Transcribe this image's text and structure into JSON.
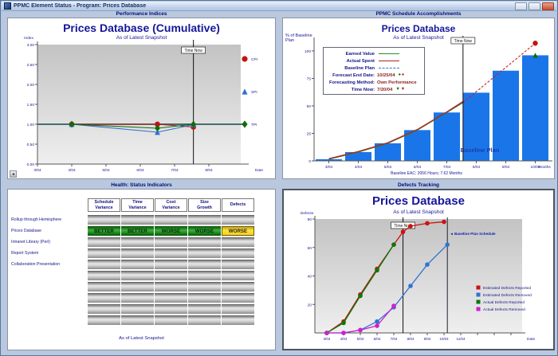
{
  "window": {
    "title": "PPMC Element Status - Program: Prices Database"
  },
  "panel_headers": {
    "performance": "Performance Indices",
    "schedule": "PPMC Schedule Accomplishments",
    "health": "Health: Status Indicators",
    "defects": "Defects Tracking"
  },
  "performance": {
    "title": "Prices Database (Cumulative)",
    "subtitle": "As of Latest Snapshot"
  },
  "schedule": {
    "title": "Prices Database",
    "subtitle": "As of Latest Snapshot",
    "ylabel": "% of Baseline Plan",
    "legend": {
      "rows": [
        {
          "label": "Earned Value",
          "swatch": "line-green"
        },
        {
          "label": "Actual Spent",
          "swatch": "line-red"
        },
        {
          "label": "Baseline Plan",
          "swatch": "line-blue-dash"
        },
        {
          "label": "Forecast End Date:",
          "value": "10/25/04",
          "markers": "dots"
        },
        {
          "label": "Forecasting Method:",
          "value": "Own Performance"
        },
        {
          "label": "Time Now:",
          "value": "7/20/04",
          "markers": "triangles"
        }
      ]
    }
  },
  "defects_panel": {
    "title": "Prices Database",
    "subtitle": "As of Latest Snapshot"
  },
  "health": {
    "columns": [
      [
        "Schedule",
        "Variance"
      ],
      [
        "Time",
        "Variance"
      ],
      [
        "Cost",
        "Variance"
      ],
      [
        "Size",
        "Growth"
      ],
      [
        "Defects"
      ]
    ],
    "row_labels": [
      "Rollup through Hemisphere",
      "Prices Database",
      "Intranet Library (Perl)",
      "Report System",
      "Collaboration Presentation"
    ],
    "n_rows": 10,
    "highlight_row": 1,
    "highlight_values": [
      "BETTER",
      "BETTER",
      "WORSE",
      "WORSE",
      "WORSE"
    ],
    "highlight_colors": [
      "green",
      "green",
      "green",
      "green",
      "yellow"
    ],
    "caption": "As of Latest Snapshot"
  },
  "colors": {
    "title_navy": "#16169a",
    "bar_blue": "#1a75e8",
    "health_better_green": "#2f9e2f",
    "health_worse_yellow": "#ffd900",
    "window_bg": "#b9c8de"
  },
  "chart_data": [
    {
      "id": "performance_indices",
      "type": "line",
      "title": "Prices Database (Cumulative)",
      "subtitle": "As of Latest Snapshot",
      "ylabel": "Index",
      "xlabel": "Date",
      "x_tick_labels": [
        "3/04",
        "4/04",
        "5/04",
        "6/04",
        "7/04",
        "8/04"
      ],
      "y_ticks": [
        0,
        0.5,
        1,
        1.5,
        2,
        2.5,
        3
      ],
      "ylim": [
        0,
        3
      ],
      "reference_line_y": 1.0,
      "time_now": {
        "label": "Time Now",
        "x_months_from_start": 4.55,
        "date": "7/20/04"
      },
      "series": [
        {
          "name": "CPI",
          "marker": "circle",
          "color": "#c11414",
          "x": [
            1,
            3.5,
            4.55
          ],
          "y": [
            1.0,
            1.0,
            0.93
          ]
        },
        {
          "name": "SPI",
          "marker": "triangle",
          "color": "#2e6fd0",
          "x": [
            1,
            3.5,
            4.55
          ],
          "y": [
            1.0,
            0.8,
            0.99
          ]
        },
        {
          "name": "TPI",
          "marker": "diamond",
          "color": "#0c6e0c",
          "x": [
            1,
            3.5,
            4.55
          ],
          "y": [
            1.0,
            0.9,
            1.0
          ]
        }
      ]
    },
    {
      "id": "schedule_accomplishments",
      "type": "bar",
      "title": "Prices Database",
      "subtitle": "As of Latest Snapshot",
      "categories": [
        "3/04",
        "4/04",
        "5/04",
        "6/04",
        "7/04",
        "8/04",
        "9/04",
        "10/04"
      ],
      "bar_values_pct_of_baseline": [
        1.5,
        8,
        16,
        28,
        44,
        62,
        82,
        96
      ],
      "bar_series_name": "Baseline Plan",
      "bar_color": "#1a75e8",
      "y_ticks": [
        0,
        25,
        50,
        75,
        100
      ],
      "ylim": [
        0,
        105
      ],
      "ylabel": "% of Baseline Plan",
      "xlabel": "Months",
      "time_now": {
        "label": "Time Now",
        "x_months_from_start": 4.55,
        "date": "7/20/04"
      },
      "overlay_lines": [
        {
          "name": "Earned Value",
          "color": "#2e8b2e",
          "x": [
            0,
            1,
            2,
            3,
            4,
            4.55
          ],
          "y": [
            1.5,
            8,
            16,
            28,
            44,
            53
          ]
        },
        {
          "name": "Actual Spent",
          "color": "#b22222",
          "x": [
            0,
            1,
            2,
            3,
            4,
            4.55
          ],
          "y": [
            2,
            8.5,
            16.5,
            28.5,
            44.5,
            54
          ]
        }
      ],
      "forecast_line": {
        "color": "#d02020",
        "dashed": true,
        "x": [
          4.55,
          7.0
        ],
        "y": [
          53,
          107
        ]
      },
      "forecast_markers": [
        {
          "shape": "circle",
          "color": "#c11414",
          "x": 7.0,
          "y": 107
        },
        {
          "shape": "triangle",
          "color": "#0c6e0c",
          "x": 7.0,
          "y": 96
        }
      ],
      "bar_area_label": "Baseline Plan",
      "caption": "Baseline EAC: 2056 Hours; 7.62 Months"
    },
    {
      "id": "defects_tracking",
      "type": "line",
      "title": "Prices Database",
      "subtitle": "As of Latest Snapshot",
      "x_tick_labels": [
        "3/04",
        "4/04",
        "5/04",
        "6/04",
        "7/04",
        "8/04",
        "9/04",
        "10/04",
        "11/04"
      ],
      "n_extra_unlabeled_ticks": 3,
      "xlabel": "Date",
      "ylabel": "Defects",
      "y_ticks": [
        20,
        40,
        60,
        80
      ],
      "ylim": [
        0,
        80
      ],
      "time_now": {
        "label": "Time Now",
        "x_months_from_start": 4.55,
        "date": "7/20/04"
      },
      "baseline_plan_schedule_x": 7.2,
      "baseline_plan_schedule_label": "Baseline Plan Schedule",
      "series": [
        {
          "name": "Estimated Defects Reported",
          "color": "#cc1111",
          "x": [
            0,
            1,
            2,
            3,
            4,
            4.55,
            5,
            6,
            7
          ],
          "y": [
            0,
            8,
            27,
            45,
            62,
            71,
            75,
            77,
            78
          ]
        },
        {
          "name": "Estimated Defects Removed",
          "color": "#2f74d0",
          "x": [
            0,
            1,
            2,
            3,
            4,
            5,
            6,
            7.2
          ],
          "y": [
            0,
            0,
            2,
            8,
            18,
            33,
            48,
            62
          ]
        },
        {
          "name": "Actual Defects Reported",
          "color": "#0a7a0a",
          "x": [
            0,
            1,
            2,
            3,
            4
          ],
          "y": [
            0,
            7,
            26,
            44,
            62
          ]
        },
        {
          "name": "Actual Defects Removed",
          "color": "#cc22cc",
          "x": [
            0,
            1,
            2,
            3,
            4
          ],
          "y": [
            0,
            0,
            2,
            5,
            19
          ]
        }
      ]
    }
  ]
}
